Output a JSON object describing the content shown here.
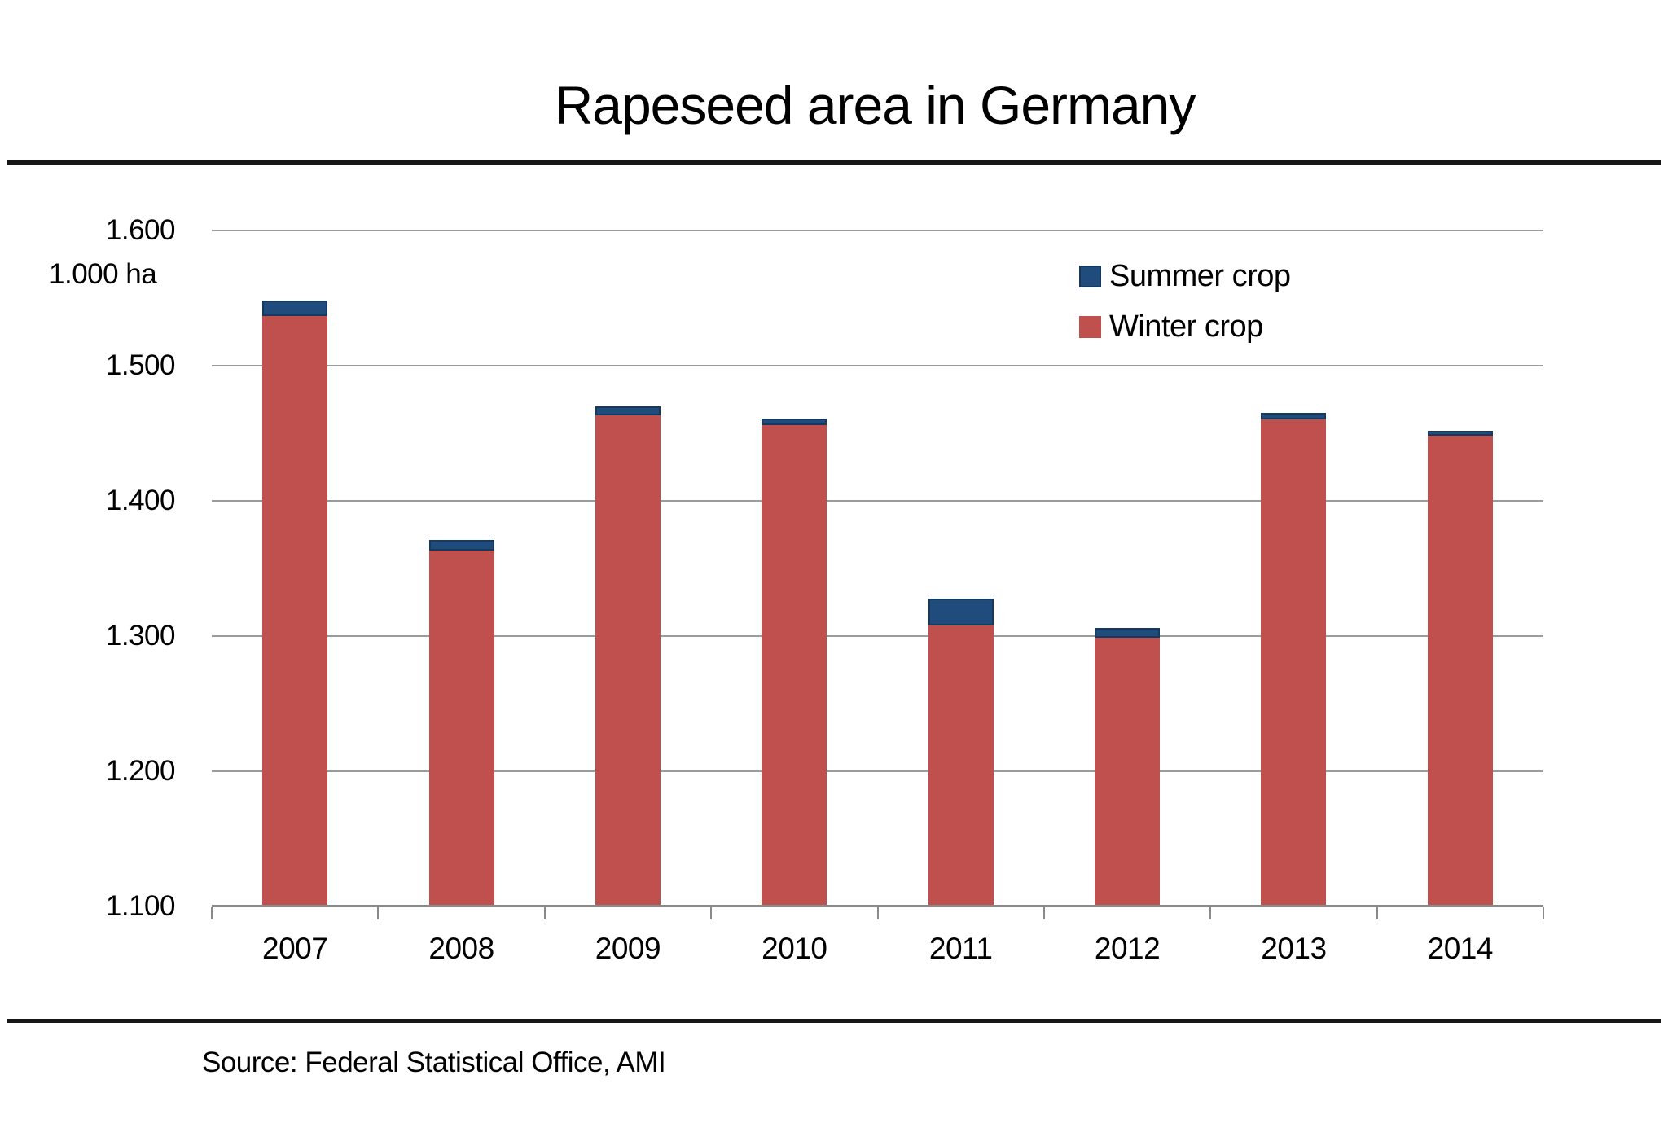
{
  "title": "Rapeseed area in Germany",
  "y_axis": {
    "unit_label": "1.000 ha",
    "tick_labels": [
      "1.600",
      "1.500",
      "1.400",
      "1.300",
      "1.200",
      "1.100"
    ]
  },
  "legend": {
    "items": [
      {
        "label": "Summer crop",
        "color": "#1F4C7C"
      },
      {
        "label": "Winter crop",
        "color": "#C0504D"
      }
    ]
  },
  "source": "Source: Federal Statistical Office, AMI",
  "chart_data": {
    "type": "bar",
    "stacked": true,
    "title": "Rapeseed area in Germany",
    "ylabel": "1.000 ha",
    "categories": [
      "2007",
      "2008",
      "2009",
      "2010",
      "2011",
      "2012",
      "2013",
      "2014"
    ],
    "series": [
      {
        "name": "Winter crop",
        "color": "#C0504D",
        "values": [
          1537,
          1363,
          1463,
          1456,
          1308,
          1299,
          1460,
          1448
        ]
      },
      {
        "name": "Summer crop",
        "color": "#1F4C7C",
        "border_color": "#17395E",
        "values": [
          11,
          8,
          7,
          5,
          20,
          7,
          5,
          4
        ]
      }
    ],
    "totals": [
      1548,
      1371,
      1470,
      1461,
      1328,
      1306,
      1465,
      1452
    ],
    "ylim": [
      1100,
      1600
    ],
    "ytick_step": 100,
    "grid": true,
    "gridline_color": "#9b9b9b",
    "axis_color": "#8a8a8a",
    "legend_position": "upper-right",
    "source": "Source: Federal Statistical Office, AMI"
  }
}
